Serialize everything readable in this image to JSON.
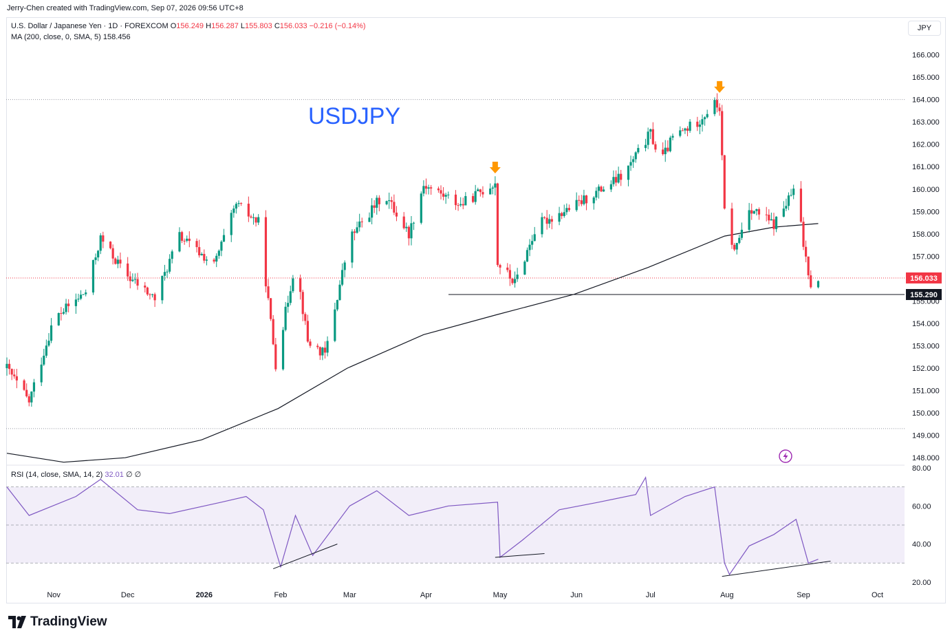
{
  "header": {
    "attribution": "Jerry-Chen created with TradingView.com, Sep 07, 2026 09:56 UTC+8"
  },
  "legend": {
    "symbol": "U.S. Dollar / Japanese Yen · 1D · FOREXCOM",
    "o_label": "O",
    "o_value": "156.249",
    "h_label": "H",
    "h_value": "156.287",
    "l_label": "L",
    "l_value": "155.803",
    "c_label": "C",
    "c_value": "156.033",
    "change": "−0.216 (−0.14%)",
    "ma_label": "MA (200, close, 0, SMA, 5)",
    "ma_value": "158.456",
    "rsi_label": "RSI (14, close, SMA, 14, 2)",
    "rsi_value": "32.01",
    "rsi_extra": "∅ ∅"
  },
  "currency_button": "JPY",
  "overlay_title": "USDJPY",
  "brand": {
    "name": "TradingView",
    "logo_icon": "tradingview-logo-icon"
  },
  "colors": {
    "up": "#089981",
    "down": "#f23645",
    "ma": "#131722",
    "rsi": "#7e57c2",
    "rsi_band": "#7e57c2",
    "title": "#2962ff",
    "arrow": "#ff9800",
    "price_tag": "#f23645"
  },
  "icons": {
    "alert": "lightning-icon",
    "arrow": "arrow-down-icon"
  },
  "chart_data": [
    {
      "type": "candlestick",
      "title": "USDJPY",
      "ylim": [
        147.7,
        166.6
      ],
      "y_ticks": [
        "166.000",
        "165.000",
        "164.000",
        "163.000",
        "162.000",
        "161.000",
        "160.000",
        "159.000",
        "158.000",
        "157.000",
        "155.000",
        "154.000",
        "153.000",
        "152.000",
        "151.000",
        "150.000",
        "149.000",
        "148.000"
      ],
      "x_ticks": [
        "Nov",
        "Dec",
        "2026",
        "Feb",
        "Mar",
        "Apr",
        "May",
        "Jun",
        "Jul",
        "Aug",
        "Sep",
        "Oct"
      ],
      "x_range": [
        "2025-10-13",
        "2026-10-12"
      ],
      "last_price": "156.033",
      "support_level": "155.290",
      "support_value": 155.29,
      "last_value": 156.03,
      "grid": false,
      "key_points": [
        {
          "date": "2025-10-13",
          "value": 152.0
        },
        {
          "date": "2025-10-22",
          "value": 150.5
        },
        {
          "date": "2025-11-01",
          "value": 154.2
        },
        {
          "date": "2025-11-14",
          "value": 155.4
        },
        {
          "date": "2025-11-20",
          "value": 157.8
        },
        {
          "date": "2025-11-30",
          "value": 156.2
        },
        {
          "date": "2025-12-12",
          "value": 155.1
        },
        {
          "date": "2025-12-22",
          "value": 157.9
        },
        {
          "date": "2026-01-05",
          "value": 156.6
        },
        {
          "date": "2026-01-14",
          "value": 159.3
        },
        {
          "date": "2026-01-23",
          "value": 158.5
        },
        {
          "date": "2026-01-26",
          "value": 155.9
        },
        {
          "date": "2026-01-30",
          "value": 152.2
        },
        {
          "date": "2026-02-07",
          "value": 156.8
        },
        {
          "date": "2026-02-12",
          "value": 153.2
        },
        {
          "date": "2026-02-19",
          "value": 152.6
        },
        {
          "date": "2026-03-01",
          "value": 157.8
        },
        {
          "date": "2026-03-15",
          "value": 159.8
        },
        {
          "date": "2026-03-25",
          "value": 158.0
        },
        {
          "date": "2026-03-31",
          "value": 160.2
        },
        {
          "date": "2026-04-15",
          "value": 159.3
        },
        {
          "date": "2026-04-29",
          "value": 160.3
        },
        {
          "date": "2026-04-30",
          "value": 156.7
        },
        {
          "date": "2026-05-07",
          "value": 155.8
        },
        {
          "date": "2026-05-16",
          "value": 158.4
        },
        {
          "date": "2026-06-01",
          "value": 159.3
        },
        {
          "date": "2026-06-20",
          "value": 160.6
        },
        {
          "date": "2026-07-01",
          "value": 162.5
        },
        {
          "date": "2026-07-05",
          "value": 161.2
        },
        {
          "date": "2026-07-10",
          "value": 162.3
        },
        {
          "date": "2026-07-20",
          "value": 163.0
        },
        {
          "date": "2026-07-27",
          "value": 163.8
        },
        {
          "date": "2026-07-29",
          "value": 163.6
        },
        {
          "date": "2026-07-31",
          "value": 159.0
        },
        {
          "date": "2026-08-04",
          "value": 157.2
        },
        {
          "date": "2026-08-10",
          "value": 159.2
        },
        {
          "date": "2026-08-20",
          "value": 158.4
        },
        {
          "date": "2026-08-29",
          "value": 160.1
        },
        {
          "date": "2026-09-01",
          "value": 157.5
        },
        {
          "date": "2026-09-04",
          "value": 155.8
        },
        {
          "date": "2026-09-07",
          "value": 156.03
        }
      ],
      "ma_series": [
        {
          "date": "2025-10-13",
          "value": 148.2
        },
        {
          "date": "2025-11-05",
          "value": 147.8
        },
        {
          "date": "2025-11-30",
          "value": 148.0
        },
        {
          "date": "2025-12-31",
          "value": 148.8
        },
        {
          "date": "2026-01-31",
          "value": 150.2
        },
        {
          "date": "2026-02-28",
          "value": 152.0
        },
        {
          "date": "2026-03-31",
          "value": 153.5
        },
        {
          "date": "2026-04-30",
          "value": 154.4
        },
        {
          "date": "2026-05-31",
          "value": 155.3
        },
        {
          "date": "2026-06-30",
          "value": 156.5
        },
        {
          "date": "2026-07-31",
          "value": 157.9
        },
        {
          "date": "2026-08-20",
          "value": 158.3
        },
        {
          "date": "2026-09-07",
          "value": 158.46
        }
      ],
      "markers": [
        {
          "type": "arrow-down",
          "date": "2026-04-29",
          "value": 160.3
        },
        {
          "type": "arrow-down",
          "date": "2026-07-29",
          "value": 163.9
        }
      ]
    },
    {
      "type": "line",
      "name": "RSI",
      "ylim": [
        16,
        80
      ],
      "y_ticks": [
        "80.00",
        "60.00",
        "40.00",
        "20.00"
      ],
      "band": [
        30,
        70
      ],
      "mid": 50,
      "series": [
        {
          "date": "2025-10-13",
          "value": 70
        },
        {
          "date": "2025-10-22",
          "value": 55
        },
        {
          "date": "2025-11-10",
          "value": 65
        },
        {
          "date": "2025-11-20",
          "value": 74
        },
        {
          "date": "2025-12-05",
          "value": 58
        },
        {
          "date": "2025-12-18",
          "value": 56
        },
        {
          "date": "2026-01-08",
          "value": 62
        },
        {
          "date": "2026-01-18",
          "value": 65
        },
        {
          "date": "2026-01-25",
          "value": 58
        },
        {
          "date": "2026-02-01",
          "value": 28
        },
        {
          "date": "2026-02-07",
          "value": 55
        },
        {
          "date": "2026-02-14",
          "value": 34
        },
        {
          "date": "2026-03-01",
          "value": 60
        },
        {
          "date": "2026-03-12",
          "value": 68
        },
        {
          "date": "2026-03-25",
          "value": 55
        },
        {
          "date": "2026-04-10",
          "value": 60
        },
        {
          "date": "2026-04-30",
          "value": 62
        },
        {
          "date": "2026-05-01",
          "value": 33
        },
        {
          "date": "2026-05-10",
          "value": 42
        },
        {
          "date": "2026-05-25",
          "value": 58
        },
        {
          "date": "2026-06-10",
          "value": 62
        },
        {
          "date": "2026-06-25",
          "value": 66
        },
        {
          "date": "2026-06-29",
          "value": 75
        },
        {
          "date": "2026-07-01",
          "value": 55
        },
        {
          "date": "2026-07-15",
          "value": 65
        },
        {
          "date": "2026-07-27",
          "value": 70
        },
        {
          "date": "2026-07-31",
          "value": 30
        },
        {
          "date": "2026-08-02",
          "value": 24
        },
        {
          "date": "2026-08-10",
          "value": 39
        },
        {
          "date": "2026-08-20",
          "value": 45
        },
        {
          "date": "2026-08-29",
          "value": 53
        },
        {
          "date": "2026-09-03",
          "value": 30
        },
        {
          "date": "2026-09-07",
          "value": 32.01
        }
      ],
      "divergence_lines": [
        {
          "from": {
            "date": "2026-01-29",
            "value": 27
          },
          "to": {
            "date": "2026-02-24",
            "value": 40
          }
        },
        {
          "from": {
            "date": "2026-04-29",
            "value": 33
          },
          "to": {
            "date": "2026-05-19",
            "value": 35
          }
        },
        {
          "from": {
            "date": "2026-07-30",
            "value": 23
          },
          "to": {
            "date": "2026-09-12",
            "value": 31
          }
        }
      ]
    }
  ]
}
